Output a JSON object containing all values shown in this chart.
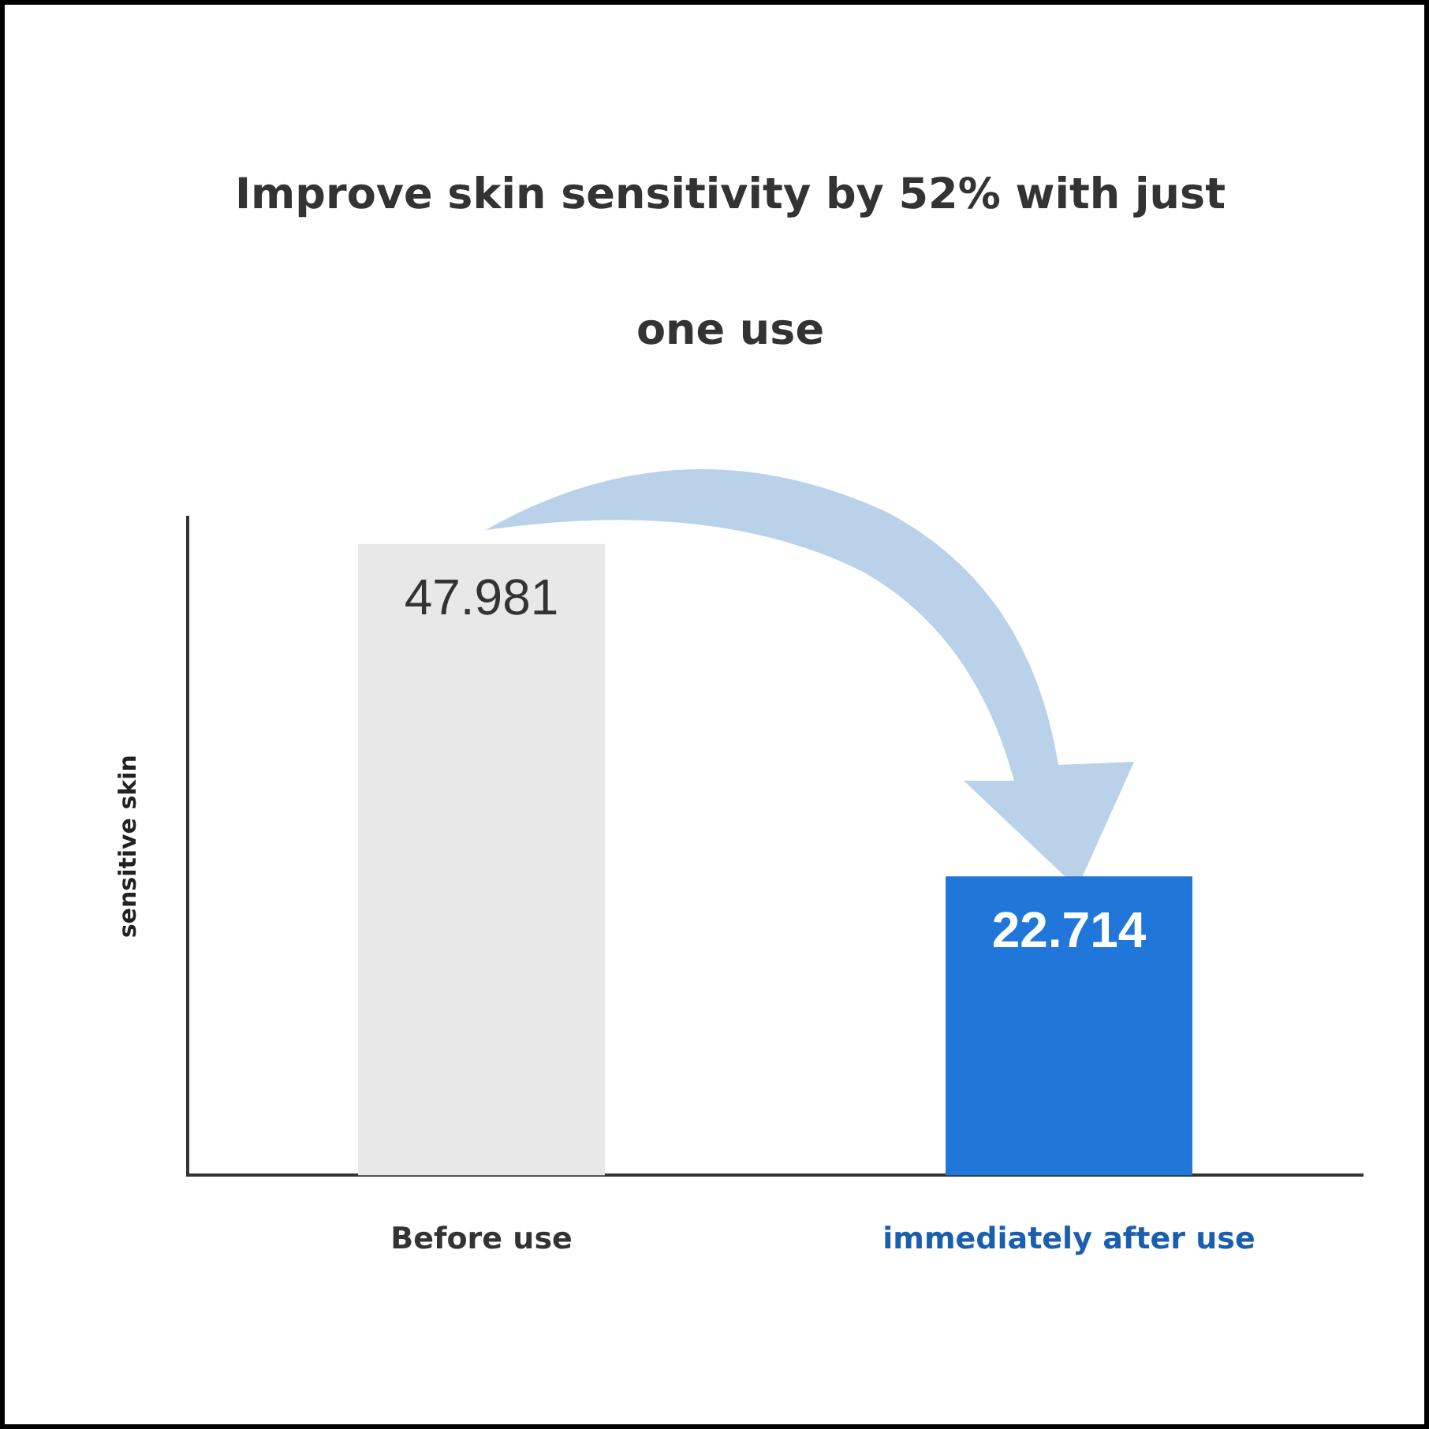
{
  "chart_data": {
    "type": "bar",
    "title": "Improve skin sensitivity by 52% with just one use",
    "ylabel": "sensitive skin",
    "categories": [
      "Before use",
      "immediately after use"
    ],
    "values": [
      47.981,
      22.714
    ],
    "colors": [
      "#e8e8e8",
      "#2176d9"
    ],
    "data_labels": true,
    "grid": false,
    "legend": false,
    "tick_labels": "x"
  }
}
